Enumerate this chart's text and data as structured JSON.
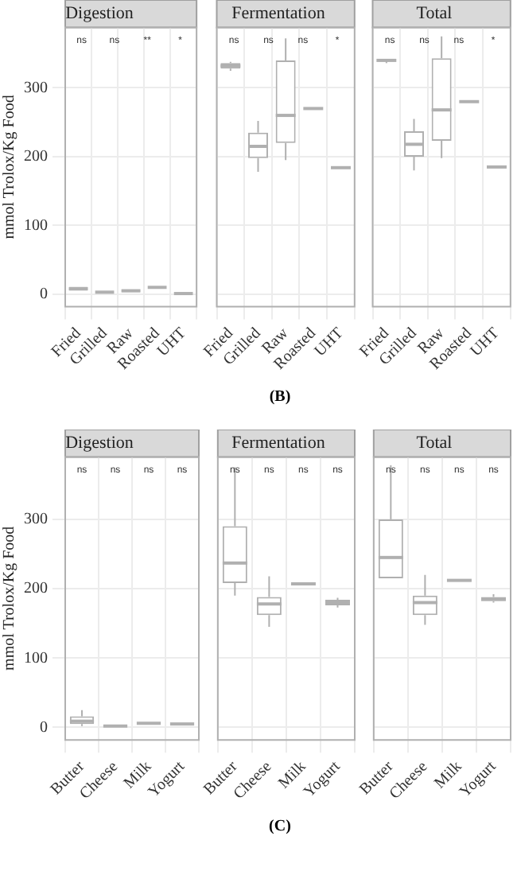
{
  "chart_data": [
    {
      "type": "box",
      "title": "Digestion",
      "ylabel": "mmol Trolox/Kg Food",
      "categories": [
        "Fried",
        "Grilled",
        "Raw",
        "Roasted",
        "UHT"
      ],
      "color": "#b0b0b0",
      "boxes": [
        {
          "low": 5,
          "q1": 5,
          "median": 8,
          "q3": 11,
          "high": 11
        },
        {
          "low": 3,
          "q1": 3,
          "median": 3,
          "q3": 3,
          "high": 3
        },
        {
          "low": 3,
          "q1": 3,
          "median": 5,
          "q3": 7,
          "high": 7
        },
        {
          "low": 10,
          "q1": 10,
          "median": 10,
          "q3": 10,
          "high": 10
        },
        {
          "low": 1,
          "q1": 1,
          "median": 1,
          "q3": 1,
          "high": 1
        }
      ],
      "ylim": [
        -18,
        388
      ],
      "yticks": [
        0,
        100,
        200,
        300
      ],
      "grid": true,
      "annotations": [
        "ns",
        "ns",
        "**",
        "*"
      ]
    },
    {
      "type": "box",
      "title": "Fermentation",
      "subtitle": "(B)",
      "categories": [
        "Fried",
        "Grilled",
        "Raw",
        "Roasted",
        "UHT"
      ],
      "color": "#b0b0b0",
      "boxes": [
        {
          "low": 325,
          "q1": 328,
          "median": 332,
          "q3": 336,
          "high": 338
        },
        {
          "low": 178,
          "q1": 198,
          "median": 215,
          "q3": 235,
          "high": 252
        },
        {
          "low": 195,
          "q1": 220,
          "median": 260,
          "q3": 340,
          "high": 372
        },
        {
          "low": 270,
          "q1": 270,
          "median": 270,
          "q3": 270,
          "high": 270
        },
        {
          "low": 184,
          "q1": 184,
          "median": 184,
          "q3": 184,
          "high": 184
        }
      ],
      "ylim": [
        -18,
        388
      ],
      "yticks": [
        0,
        100,
        200,
        300
      ],
      "grid": true,
      "tick_labels": "x",
      "annotations": [
        "ns",
        "ns",
        "ns",
        "*"
      ]
    },
    {
      "type": "box",
      "title": "Total",
      "categories": [
        "Fried",
        "Grilled",
        "Raw",
        "Roasted",
        "UHT"
      ],
      "color": "#b0b0b0",
      "boxes": [
        {
          "low": 336,
          "q1": 340,
          "median": 340,
          "q3": 340,
          "high": 340
        },
        {
          "low": 180,
          "q1": 200,
          "median": 218,
          "q3": 237,
          "high": 255
        },
        {
          "low": 198,
          "q1": 223,
          "median": 268,
          "q3": 343,
          "high": 375
        },
        {
          "low": 280,
          "q1": 280,
          "median": 280,
          "q3": 280,
          "high": 280
        },
        {
          "low": 185,
          "q1": 185,
          "median": 185,
          "q3": 185,
          "high": 185
        }
      ],
      "ylim": [
        -18,
        388
      ],
      "yticks": [
        0,
        100,
        200,
        300
      ],
      "grid": true,
      "tick_labels": "x",
      "annotations": [
        "ns",
        "ns",
        "ns",
        "*"
      ]
    },
    {
      "type": "box",
      "title": "Digestion",
      "ylabel": "mmol Trolox/Kg Food",
      "categories": [
        "Butter",
        "Cheese",
        "Milk",
        "Yogurt"
      ],
      "color": "#b0b0b0",
      "boxes": [
        {
          "low": 2,
          "q1": 5,
          "median": 9,
          "q3": 16,
          "high": 25
        },
        {
          "low": 1,
          "q1": 1,
          "median": 2,
          "q3": 3,
          "high": 3
        },
        {
          "low": 5,
          "q1": 6,
          "median": 6,
          "q3": 7,
          "high": 7
        },
        {
          "low": 5,
          "q1": 5,
          "median": 5,
          "q3": 5,
          "high": 5
        }
      ],
      "ylim": [
        -18,
        390
      ],
      "yticks": [
        0,
        100,
        200,
        300
      ],
      "grid": true,
      "annotations": [
        "ns",
        "ns",
        "ns",
        "ns"
      ]
    },
    {
      "type": "box",
      "title": "Fermentation",
      "subtitle": "(C)",
      "categories": [
        "Butter",
        "Cheese",
        "Milk",
        "Yogurt"
      ],
      "color": "#b0b0b0",
      "boxes": [
        {
          "low": 190,
          "q1": 208,
          "median": 237,
          "q3": 290,
          "high": 375
        },
        {
          "low": 145,
          "q1": 162,
          "median": 178,
          "q3": 188,
          "high": 218
        },
        {
          "low": 207,
          "q1": 207,
          "median": 207,
          "q3": 207,
          "high": 207
        },
        {
          "low": 173,
          "q1": 176,
          "median": 180,
          "q3": 184,
          "high": 187
        }
      ],
      "ylim": [
        -18,
        390
      ],
      "yticks": [
        0,
        100,
        200,
        300
      ],
      "grid": true,
      "tick_labels": "x",
      "annotations": [
        "ns",
        "ns",
        "ns",
        "ns"
      ]
    },
    {
      "type": "box",
      "title": "Total",
      "categories": [
        "Butter",
        "Cheese",
        "Milk",
        "Yogurt"
      ],
      "color": "#b0b0b0",
      "boxes": [
        {
          "low": 215,
          "q1": 215,
          "median": 245,
          "q3": 300,
          "high": 378
        },
        {
          "low": 148,
          "q1": 162,
          "median": 180,
          "q3": 190,
          "high": 220
        },
        {
          "low": 211,
          "q1": 212,
          "median": 212,
          "q3": 213,
          "high": 213
        },
        {
          "low": 180,
          "q1": 182,
          "median": 185,
          "q3": 188,
          "high": 192
        }
      ],
      "ylim": [
        -18,
        390
      ],
      "yticks": [
        0,
        100,
        200,
        300
      ],
      "grid": true,
      "tick_labels": "x",
      "annotations": [
        "ns",
        "ns",
        "ns",
        "ns"
      ]
    }
  ]
}
